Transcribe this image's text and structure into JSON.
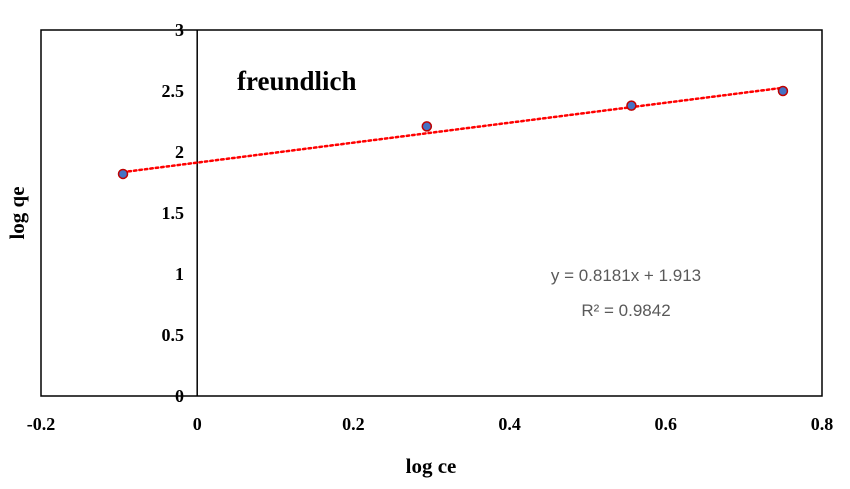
{
  "chart_data": {
    "type": "scatter",
    "title": "freundlich",
    "xlabel": "log ce",
    "ylabel": "log qe",
    "xlim": [
      -0.2,
      0.8
    ],
    "ylim": [
      0,
      3
    ],
    "x_ticks": [
      "-0.2",
      "0",
      "0.2",
      "0.4",
      "0.6",
      "0.8"
    ],
    "y_ticks": [
      "0",
      "0.5",
      "1",
      "1.5",
      "2",
      "2.5",
      "3"
    ],
    "grid": false,
    "series": [
      {
        "x": [
          -0.095,
          0.294,
          0.556,
          0.75
        ],
        "y": [
          1.82,
          2.21,
          2.38,
          2.5
        ],
        "marker_color": "#4472C4",
        "marker_edge_color": "#C00000"
      }
    ],
    "trendline": {
      "type": "linear",
      "slope": 0.8181,
      "intercept": 1.913,
      "x_range": [
        -0.095,
        0.75
      ],
      "color": "#FF0000",
      "style": "dotted",
      "equation": "y = 0.8181x + 1.913",
      "r_squared": "R² = 0.9842"
    }
  }
}
